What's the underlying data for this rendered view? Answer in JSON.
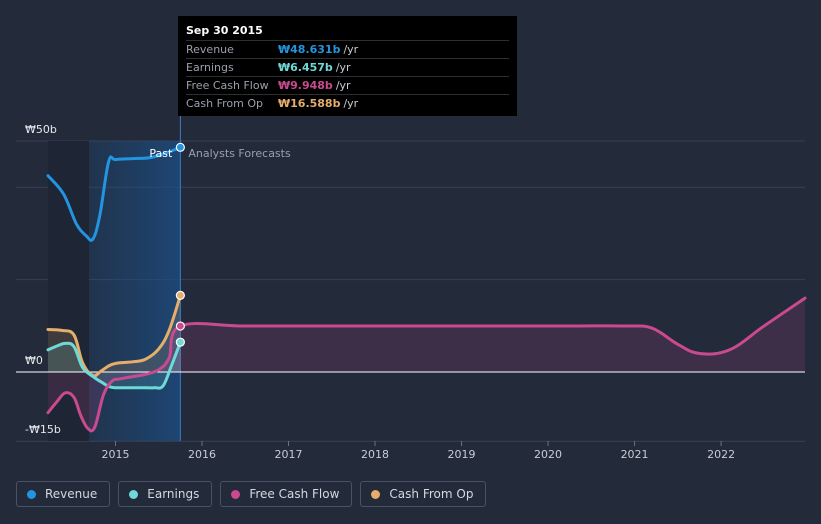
{
  "colors": {
    "background": "#232a3a",
    "revenue": "#2394df",
    "earnings": "#6fd8d8",
    "fcf": "#c94a8f",
    "cfo": "#e5ae6b",
    "past_band": "#1b4f86",
    "grid": "#3a4152",
    "zero_line": "#ffffff"
  },
  "tooltip": {
    "date": "Sep 30 2015",
    "rows": [
      {
        "label": "Revenue",
        "value": "₩48.631b",
        "unit": "/yr",
        "color": "#2394df"
      },
      {
        "label": "Earnings",
        "value": "₩6.457b",
        "unit": "/yr",
        "color": "#6fd8d8"
      },
      {
        "label": "Free Cash Flow",
        "value": "₩9.948b",
        "unit": "/yr",
        "color": "#c94a8f"
      },
      {
        "label": "Cash From Op",
        "value": "₩16.588b",
        "unit": "/yr",
        "color": "#e5ae6b"
      }
    ]
  },
  "legend": [
    {
      "label": "Revenue",
      "color": "#2394df"
    },
    {
      "label": "Earnings",
      "color": "#6fd8d8"
    },
    {
      "label": "Free Cash Flow",
      "color": "#c94a8f"
    },
    {
      "label": "Cash From Op",
      "color": "#e5ae6b"
    }
  ],
  "chart_data": {
    "type": "line",
    "title": "",
    "xlabel": "",
    "ylabel": "",
    "xlim": [
      2014.2,
      2022.97
    ],
    "ylim": [
      -15,
      50
    ],
    "x_ticks": [
      2015,
      2016,
      2017,
      2018,
      2019,
      2020,
      2021,
      2022
    ],
    "x_tick_labels": [
      "2015",
      "2016",
      "2017",
      "2018",
      "2019",
      "2020",
      "2021",
      "2022"
    ],
    "y_labels": [
      {
        "value": 50,
        "text": "₩50b"
      },
      {
        "value": 0,
        "text": "₩0"
      },
      {
        "value": -15,
        "text": "-₩15b"
      }
    ],
    "past_label": "Past",
    "forecast_label": "Analysts Forecasts",
    "past_end": 2015.75,
    "past_band_start": 2014.5,
    "series": [
      {
        "name": "Revenue",
        "color": "#2394df",
        "area": false,
        "x": [
          2014.22,
          2014.4,
          2014.55,
          2014.66,
          2014.74,
          2014.82,
          2014.92,
          2015.0,
          2015.2,
          2015.4,
          2015.6,
          2015.75
        ],
        "values": [
          42.5,
          38.5,
          32,
          29.5,
          28.8,
          34,
          45.5,
          46,
          46.2,
          46.4,
          47.5,
          48.631
        ]
      },
      {
        "name": "Cash From Op",
        "color": "#e5ae6b",
        "area": true,
        "x": [
          2014.22,
          2014.38,
          2014.52,
          2014.62,
          2014.74,
          2014.84,
          2014.94,
          2015.05,
          2015.2,
          2015.35,
          2015.5,
          2015.62,
          2015.75
        ],
        "values": [
          9.2,
          9.0,
          8.0,
          2.0,
          -0.8,
          0.3,
          1.5,
          2.0,
          2.2,
          2.8,
          5.0,
          9.0,
          16.588
        ]
      },
      {
        "name": "Earnings",
        "color": "#6fd8d8",
        "area": true,
        "x": [
          2014.22,
          2014.32,
          2014.42,
          2014.52,
          2014.62,
          2014.74,
          2014.84,
          2014.95,
          2015.1,
          2015.3,
          2015.45,
          2015.55,
          2015.65,
          2015.75
        ],
        "values": [
          4.8,
          5.6,
          6.2,
          5.5,
          1.0,
          -1.0,
          -2.2,
          -3.3,
          -3.4,
          -3.4,
          -3.4,
          -3.0,
          1.5,
          6.457
        ]
      },
      {
        "name": "Free Cash Flow",
        "color": "#c94a8f",
        "area": true,
        "x": [
          2014.22,
          2014.32,
          2014.42,
          2014.52,
          2014.6,
          2014.68,
          2014.76,
          2014.86,
          2014.96,
          2015.05,
          2015.2,
          2015.35,
          2015.5,
          2015.62,
          2015.75,
          2016.5,
          2017.5,
          2018.5,
          2019.5,
          2020.3,
          2020.9,
          2021.2,
          2021.5,
          2021.75,
          2022.1,
          2022.5,
          2022.97
        ],
        "values": [
          -8.8,
          -6.5,
          -4.5,
          -5.5,
          -9.5,
          -12.2,
          -12.0,
          -5.0,
          -2.0,
          -1.5,
          -1.0,
          -0.5,
          0.5,
          3.0,
          9.948,
          9.948,
          9.948,
          9.948,
          9.948,
          9.948,
          9.948,
          9.5,
          6.0,
          4.0,
          4.8,
          10.0,
          16.0
        ]
      },
      {
        "name": "Revenue-marker",
        "color": "#2394df",
        "area": false,
        "x": [],
        "values": []
      }
    ]
  }
}
